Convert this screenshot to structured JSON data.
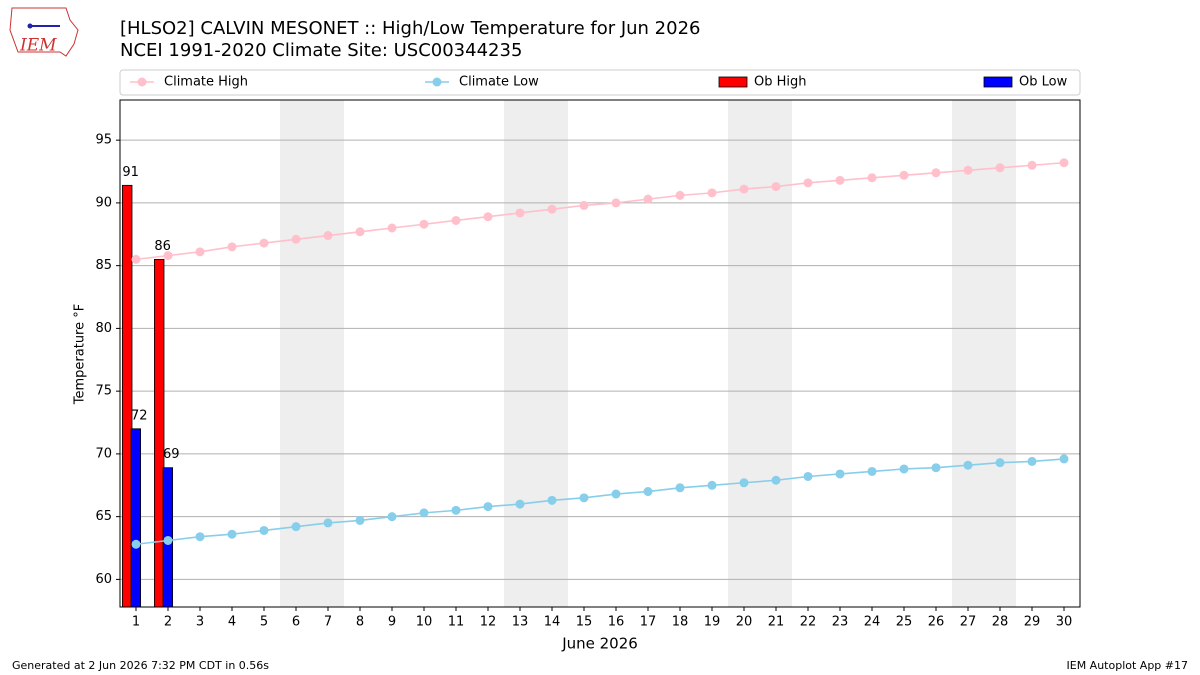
{
  "chart_data": {
    "type": "line",
    "title": "[HLSO2] CALVIN MESONET :: High/Low Temperature for Jun 2026",
    "subtitle": "NCEI 1991-2020 Climate Site: USC00344235",
    "logo": "IEM",
    "x_label": "June 2026",
    "y_label": "Temperature °F",
    "x": [
      1,
      2,
      3,
      4,
      5,
      6,
      7,
      8,
      9,
      10,
      11,
      12,
      13,
      14,
      15,
      16,
      17,
      18,
      19,
      20,
      21,
      22,
      23,
      24,
      25,
      26,
      27,
      28,
      29,
      30
    ],
    "xlim": [
      0.5,
      30.5
    ],
    "xticks": [
      1,
      2,
      3,
      4,
      5,
      6,
      7,
      8,
      9,
      10,
      11,
      12,
      13,
      14,
      15,
      16,
      17,
      18,
      19,
      20,
      21,
      22,
      23,
      24,
      25,
      26,
      27,
      28,
      29,
      30
    ],
    "ylim": [
      57.8,
      98.2
    ],
    "yticks": [
      60,
      65,
      70,
      75,
      80,
      85,
      90,
      95
    ],
    "grid": true,
    "legend": "top",
    "shaded_days": [
      6,
      7,
      13,
      14,
      20,
      21,
      27,
      28
    ],
    "series": [
      {
        "name": "Climate High",
        "kind": "line",
        "color": "#ffc0cb",
        "values": [
          85.5,
          85.8,
          86.1,
          86.5,
          86.8,
          87.1,
          87.4,
          87.7,
          88.0,
          88.3,
          88.6,
          88.9,
          89.2,
          89.5,
          89.8,
          90.0,
          90.3,
          90.6,
          90.8,
          91.1,
          91.3,
          91.6,
          91.8,
          92.0,
          92.2,
          92.4,
          92.6,
          92.8,
          93.0,
          93.2
        ]
      },
      {
        "name": "Climate Low",
        "kind": "line",
        "color": "#87ceeb",
        "values": [
          62.8,
          63.1,
          63.4,
          63.6,
          63.9,
          64.2,
          64.5,
          64.7,
          65.0,
          65.3,
          65.5,
          65.8,
          66.0,
          66.3,
          66.5,
          66.8,
          67.0,
          67.3,
          67.5,
          67.7,
          67.9,
          68.2,
          68.4,
          68.6,
          68.8,
          68.9,
          69.1,
          69.3,
          69.4,
          69.6
        ]
      },
      {
        "name": "Ob High",
        "kind": "bar",
        "color": "#ff0000",
        "values": [
          91.4,
          85.5,
          null,
          null,
          null,
          null,
          null,
          null,
          null,
          null,
          null,
          null,
          null,
          null,
          null,
          null,
          null,
          null,
          null,
          null,
          null,
          null,
          null,
          null,
          null,
          null,
          null,
          null,
          null,
          null
        ],
        "value_labels": [
          "91",
          "86",
          null,
          null,
          null,
          null,
          null,
          null,
          null,
          null,
          null,
          null,
          null,
          null,
          null,
          null,
          null,
          null,
          null,
          null,
          null,
          null,
          null,
          null,
          null,
          null,
          null,
          null,
          null,
          null
        ]
      },
      {
        "name": "Ob Low",
        "kind": "bar",
        "color": "#0000ff",
        "values": [
          72,
          68.9,
          null,
          null,
          null,
          null,
          null,
          null,
          null,
          null,
          null,
          null,
          null,
          null,
          null,
          null,
          null,
          null,
          null,
          null,
          null,
          null,
          null,
          null,
          null,
          null,
          null,
          null,
          null,
          null
        ],
        "value_labels": [
          "72",
          "69",
          null,
          null,
          null,
          null,
          null,
          null,
          null,
          null,
          null,
          null,
          null,
          null,
          null,
          null,
          null,
          null,
          null,
          null,
          null,
          null,
          null,
          null,
          null,
          null,
          null,
          null,
          null,
          null
        ]
      }
    ],
    "footer_left": "Generated at 2 Jun 2026 7:32 PM CDT in 0.56s",
    "footer_right": "IEM Autoplot App #17"
  }
}
